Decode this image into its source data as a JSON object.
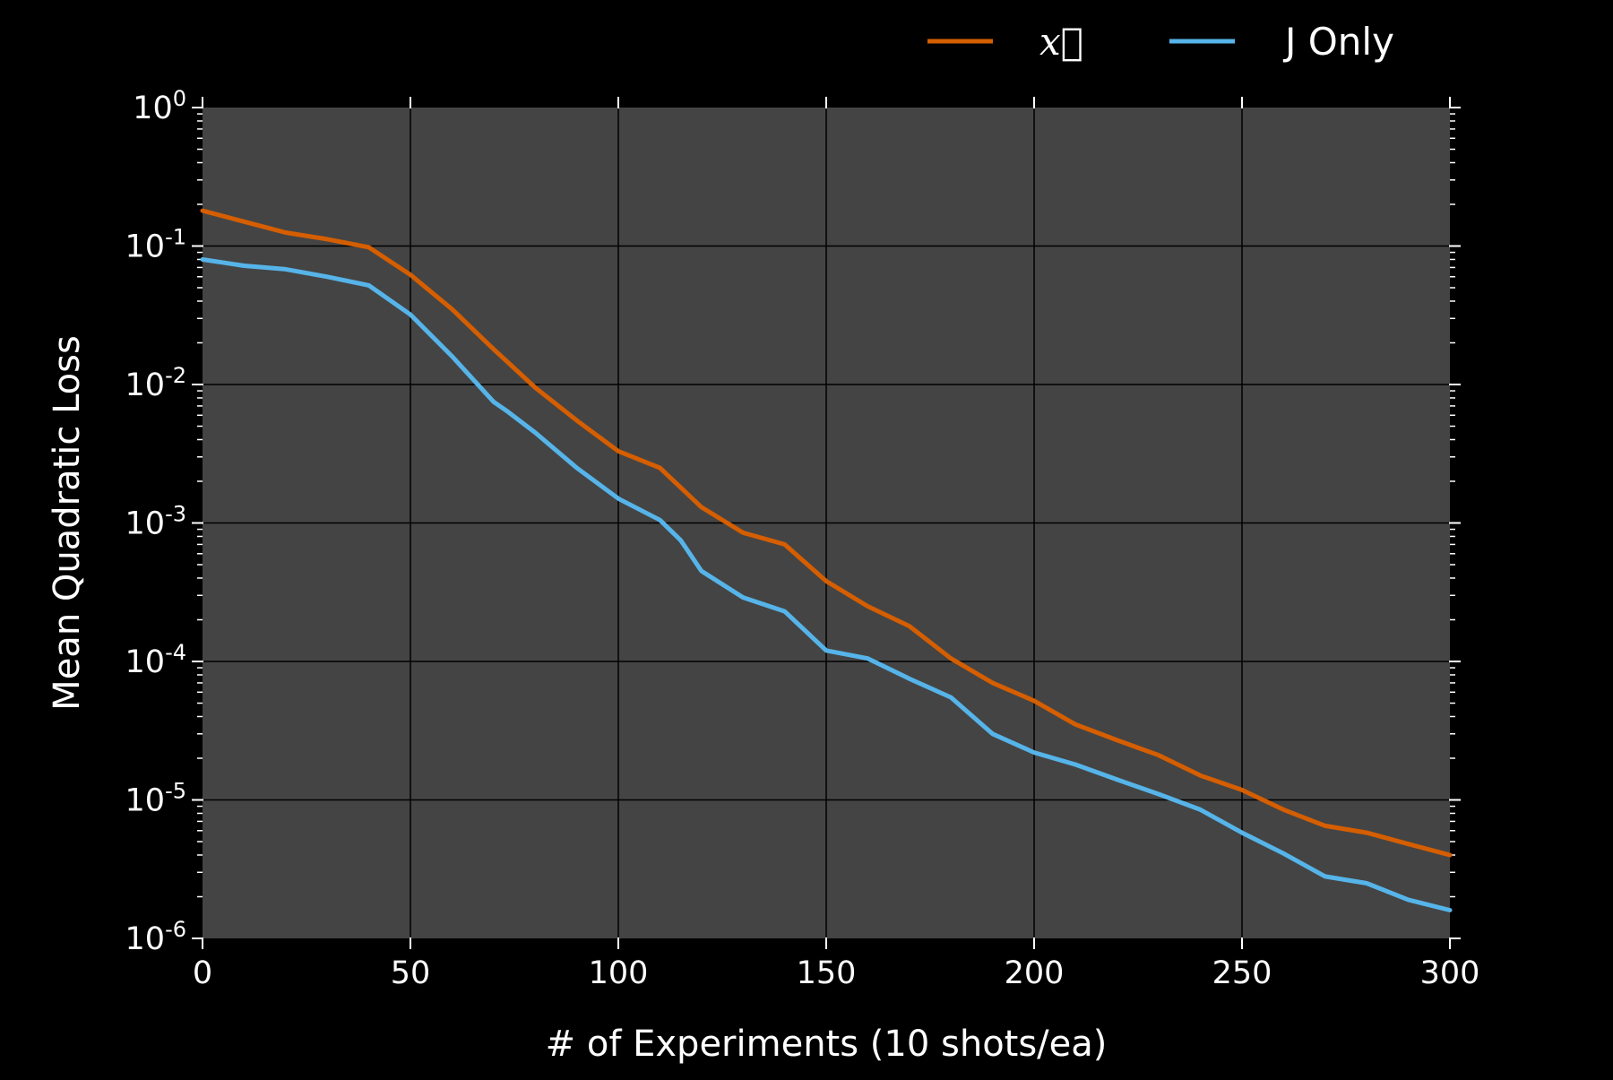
{
  "chart_data": {
    "type": "line",
    "title": "",
    "xlabel": "# of Experiments (10 shots/ea)",
    "ylabel": "Mean Quadratic Loss",
    "xlim": [
      0,
      300
    ],
    "ylim": [
      1e-06,
      1
    ],
    "y_scale": "log",
    "grid": true,
    "legend_position": "top-right",
    "background_color": "#000000",
    "plot_background_color": "#444444",
    "grid_color": "#000000",
    "x_ticks": [
      "0",
      "50",
      "100",
      "150",
      "200",
      "250",
      "300"
    ],
    "x_tick_values": [
      0,
      50,
      100,
      150,
      200,
      250,
      300
    ],
    "y_ticks": [
      {
        "base": "10",
        "exp": "0",
        "value": 1
      },
      {
        "base": "10",
        "exp": "-1",
        "value": 0.1
      },
      {
        "base": "10",
        "exp": "-2",
        "value": 0.01
      },
      {
        "base": "10",
        "exp": "-3",
        "value": 0.001
      },
      {
        "base": "10",
        "exp": "-4",
        "value": 0.0001
      },
      {
        "base": "10",
        "exp": "-5",
        "value": 1e-05
      },
      {
        "base": "10",
        "exp": "-6",
        "value": 1e-06
      }
    ],
    "series": [
      {
        "name": "x⃗",
        "color": "#d55e00",
        "x": [
          0,
          10,
          20,
          30,
          40,
          50,
          60,
          70,
          80,
          90,
          100,
          110,
          120,
          130,
          140,
          150,
          160,
          170,
          180,
          190,
          200,
          210,
          220,
          230,
          240,
          250,
          260,
          270,
          280,
          290,
          300
        ],
        "y": [
          0.18,
          0.15,
          0.125,
          0.112,
          0.098,
          0.062,
          0.035,
          0.018,
          0.0095,
          0.0055,
          0.0033,
          0.0025,
          0.0013,
          0.00085,
          0.0007,
          0.00038,
          0.00025,
          0.00018,
          0.000105,
          7e-05,
          5.2e-05,
          3.5e-05,
          2.7e-05,
          2.1e-05,
          1.5e-05,
          1.18e-05,
          8.5e-06,
          6.5e-06,
          5.8e-06,
          4.8e-06,
          4e-06
        ]
      },
      {
        "name": "J Only",
        "color": "#56b4e9",
        "x": [
          0,
          10,
          20,
          30,
          40,
          50,
          60,
          70,
          73,
          80,
          90,
          100,
          110,
          115,
          120,
          130,
          140,
          150,
          160,
          170,
          180,
          190,
          200,
          210,
          220,
          230,
          240,
          250,
          260,
          270,
          280,
          290,
          300
        ],
        "y": [
          0.08,
          0.072,
          0.068,
          0.06,
          0.052,
          0.032,
          0.016,
          0.0075,
          0.0065,
          0.0045,
          0.0025,
          0.0015,
          0.00105,
          0.00075,
          0.00045,
          0.00029,
          0.00023,
          0.00012,
          0.000105,
          7.5e-05,
          5.5e-05,
          3e-05,
          2.2e-05,
          1.8e-05,
          1.4e-05,
          1.1e-05,
          8.5e-06,
          5.8e-06,
          4.1e-06,
          2.8e-06,
          2.5e-06,
          1.9e-06,
          1.6e-06
        ]
      }
    ]
  }
}
